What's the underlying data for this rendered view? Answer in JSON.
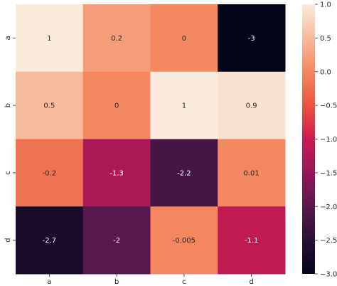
{
  "chart_data": {
    "type": "heatmap",
    "title": "",
    "xlabel": "",
    "ylabel": "",
    "x_categories": [
      "a",
      "b",
      "c",
      "d"
    ],
    "y_categories": [
      "a",
      "b",
      "c",
      "d"
    ],
    "values": [
      [
        1,
        0.2,
        0,
        -3
      ],
      [
        0.5,
        0,
        1,
        0.9
      ],
      [
        -0.2,
        -1.3,
        -2.2,
        0.01
      ],
      [
        -2.7,
        -2,
        -0.005,
        -1.1
      ]
    ],
    "annotations": [
      [
        "1",
        "0.2",
        "0",
        "-3"
      ],
      [
        "0.5",
        "0",
        "1",
        "0.9"
      ],
      [
        "-0.2",
        "-1.3",
        "-2.2",
        "0.01"
      ],
      [
        "-2.7",
        "-2",
        "-0.005",
        "-1.1"
      ]
    ],
    "colormap": "rocket",
    "colorbar": {
      "range": [
        -3.0,
        1.0
      ],
      "ticks": [
        1.0,
        0.5,
        0.0,
        -0.5,
        -1.0,
        -1.5,
        -2.0,
        -2.5,
        -3.0
      ],
      "tick_labels": [
        "1.0",
        "0.5",
        "0.0",
        "−0.5",
        "−1.0",
        "−1.5",
        "−2.0",
        "−2.5",
        "−3.0"
      ]
    },
    "grid": false,
    "legend": "colorbar-right"
  }
}
